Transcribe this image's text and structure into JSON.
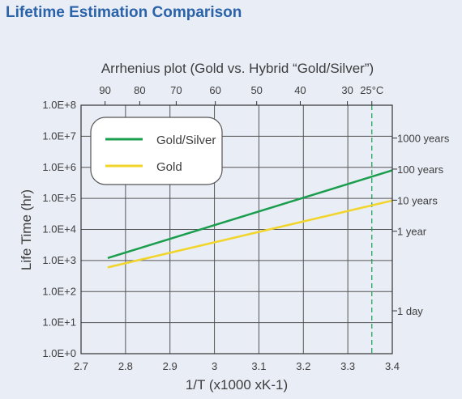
{
  "page": {
    "title": "Lifetime Estimation Comparison"
  },
  "chart_data": {
    "type": "line",
    "title": "Arrhenius plot (Gold vs. Hybrid “Gold/Silver”)",
    "xlabel": "1/T (x1000 xK-1)",
    "ylabel": "Life Time (hr)",
    "xlim": [
      2.7,
      3.4
    ],
    "ylim_log10": [
      0,
      8
    ],
    "y_scale": "log",
    "grid": true,
    "x_ticks": [
      2.7,
      2.8,
      2.9,
      3.0,
      3.1,
      3.2,
      3.3,
      3.4
    ],
    "x_tick_labels": [
      "2.7",
      "2.8",
      "2.9",
      "3",
      "3.1",
      "3.2",
      "3.3",
      "3.4"
    ],
    "y_ticks": [
      1,
      10,
      100,
      1000,
      10000,
      100000,
      1000000,
      10000000,
      100000000
    ],
    "y_tick_labels": [
      "1.0E+0",
      "1.0E+1",
      "1.0E+2",
      "1.0E+3",
      "1.0E+4",
      "1.0E+5",
      "1.0E+6",
      "1.0E+7",
      "1.0E+8"
    ],
    "top_axis": {
      "ticks": [
        {
          "label": "90",
          "x": 2.754
        },
        {
          "label": "80",
          "x": 2.832
        },
        {
          "label": "70",
          "x": 2.914
        },
        {
          "label": "60",
          "x": 3.002
        },
        {
          "label": "50",
          "x": 3.095
        },
        {
          "label": "40",
          "x": 3.193
        },
        {
          "label": "30",
          "x": 3.299
        },
        {
          "label": "25°C",
          "x": 3.354
        }
      ]
    },
    "right_axis": {
      "ticks": [
        {
          "label": "1000 years",
          "y": 8760000
        },
        {
          "label": "100 years",
          "y": 876000
        },
        {
          "label": "10 years",
          "y": 87600
        },
        {
          "label": "1 year",
          "y": 8760
        },
        {
          "label": "1 day",
          "y": 24
        }
      ]
    },
    "reference_line": {
      "x": 3.354,
      "color": "#1a9e4d",
      "style": "dashed"
    },
    "legend": {
      "placement": "top-left"
    },
    "series": [
      {
        "name": "Gold/Silver",
        "color": "#1a9e4d",
        "x": [
          2.76,
          3.4
        ],
        "y": [
          1200,
          800000
        ]
      },
      {
        "name": "Gold",
        "color": "#f1d52a",
        "x": [
          2.76,
          3.4
        ],
        "y": [
          600,
          85000
        ]
      }
    ]
  }
}
